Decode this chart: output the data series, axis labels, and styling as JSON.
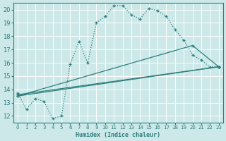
{
  "xlabel": "Humidex (Indice chaleur)",
  "bg_color": "#cce8e8",
  "grid_color": "#ffffff",
  "line_color": "#2d7d7d",
  "xlim": [
    -0.5,
    23.5
  ],
  "ylim": [
    11.5,
    20.5
  ],
  "yticks": [
    12,
    13,
    14,
    15,
    16,
    17,
    18,
    19,
    20
  ],
  "xticks": [
    0,
    1,
    2,
    3,
    4,
    5,
    6,
    7,
    8,
    9,
    10,
    11,
    12,
    13,
    14,
    15,
    16,
    17,
    18,
    19,
    20,
    21,
    22,
    23
  ],
  "series1_x": [
    0,
    1,
    2,
    3,
    4,
    5,
    6,
    7,
    8,
    9,
    10,
    11,
    12,
    13,
    14,
    15,
    16,
    17,
    18,
    19,
    20,
    21,
    22,
    23
  ],
  "series1_y": [
    13.7,
    12.5,
    13.3,
    13.1,
    11.8,
    12.0,
    15.9,
    17.6,
    16.0,
    19.0,
    19.5,
    20.3,
    20.3,
    19.6,
    19.3,
    20.1,
    19.9,
    19.5,
    18.5,
    17.7,
    16.6,
    16.2,
    15.7,
    15.7
  ],
  "series2_x": [
    0,
    23
  ],
  "series2_y": [
    13.5,
    15.7
  ],
  "series3_x": [
    0,
    23
  ],
  "series3_y": [
    13.6,
    15.7
  ],
  "series4_x": [
    0,
    20,
    23
  ],
  "series4_y": [
    13.5,
    17.3,
    15.7
  ]
}
